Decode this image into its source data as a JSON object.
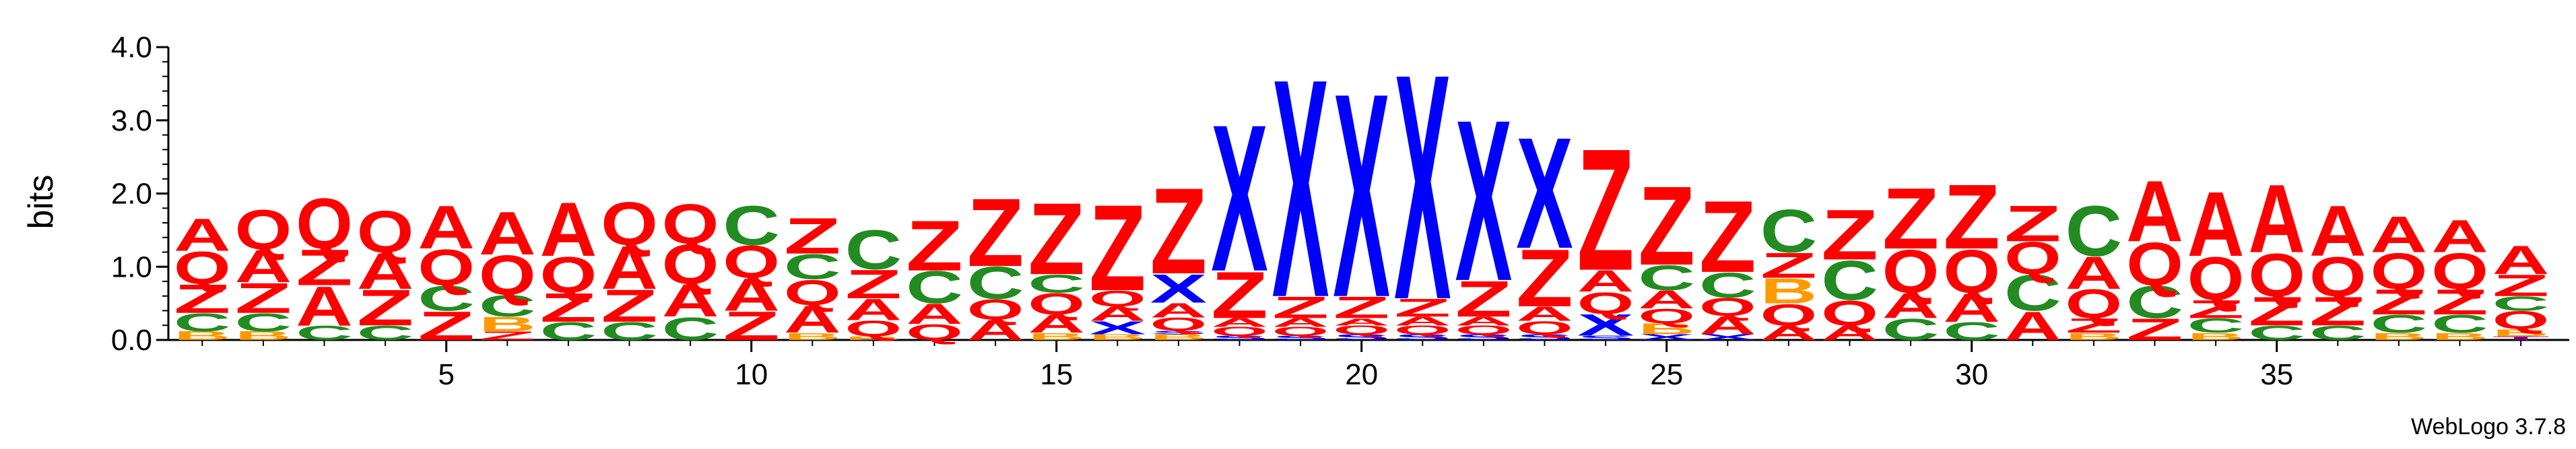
{
  "chart_data": {
    "type": "sequence-logo",
    "ylabel": "bits",
    "ylim": [
      0,
      4
    ],
    "yticks": [
      "0.0",
      "1.0",
      "2.0",
      "3.0",
      "4.0"
    ],
    "xrange": [
      1,
      39
    ],
    "xticks": [
      "5",
      "10",
      "15",
      "20",
      "25",
      "30",
      "35"
    ],
    "footer": "WebLogo 3.7.8",
    "colors": {
      "A": "#ff0000",
      "Q": "#ff0000",
      "Z": "#ff0000",
      "C": "#228b22",
      "B": "#ff9900",
      "X": "#0000ff",
      "S": "#0000ff",
      "T": "#800080"
    },
    "positions": [
      {
        "pos": 1,
        "stack": [
          [
            "B",
            0.12
          ],
          [
            "C",
            0.25
          ],
          [
            "Z",
            0.4
          ],
          [
            "Q",
            0.45
          ],
          [
            "A",
            0.45
          ]
        ]
      },
      {
        "pos": 2,
        "stack": [
          [
            "B",
            0.12
          ],
          [
            "C",
            0.25
          ],
          [
            "Z",
            0.42
          ],
          [
            "A",
            0.45
          ],
          [
            "Q",
            0.55
          ]
        ]
      },
      {
        "pos": 3,
        "stack": [
          [
            "C",
            0.2
          ],
          [
            "A",
            0.55
          ],
          [
            "Z",
            0.5
          ],
          [
            "Q",
            0.7
          ]
        ]
      },
      {
        "pos": 4,
        "stack": [
          [
            "C",
            0.2
          ],
          [
            "Z",
            0.5
          ],
          [
            "A",
            0.5
          ],
          [
            "Q",
            0.58
          ]
        ]
      },
      {
        "pos": 5,
        "stack": [
          [
            "Z",
            0.4
          ],
          [
            "C",
            0.35
          ],
          [
            "Q",
            0.5
          ],
          [
            "A",
            0.6
          ]
        ]
      },
      {
        "pos": 6,
        "stack": [
          [
            "Z",
            0.12
          ],
          [
            "B",
            0.2
          ],
          [
            "C",
            0.3
          ],
          [
            "Q",
            0.55
          ],
          [
            "A",
            0.6
          ]
        ]
      },
      {
        "pos": 7,
        "stack": [
          [
            "C",
            0.25
          ],
          [
            "Z",
            0.4
          ],
          [
            "Q",
            0.5
          ],
          [
            "A",
            0.75
          ]
        ]
      },
      {
        "pos": 8,
        "stack": [
          [
            "C",
            0.25
          ],
          [
            "Z",
            0.45
          ],
          [
            "A",
            0.6
          ],
          [
            "Q",
            0.6
          ]
        ]
      },
      {
        "pos": 9,
        "stack": [
          [
            "C",
            0.32
          ],
          [
            "A",
            0.45
          ],
          [
            "Q",
            0.55
          ],
          [
            "Q",
            0.55
          ]
        ]
      },
      {
        "pos": 10,
        "stack": [
          [
            "Z",
            0.4
          ],
          [
            "A",
            0.45
          ],
          [
            "Q",
            0.45
          ],
          [
            "C",
            0.55
          ]
        ]
      },
      {
        "pos": 11,
        "stack": [
          [
            "B",
            0.1
          ],
          [
            "A",
            0.38
          ],
          [
            "Q",
            0.35
          ],
          [
            "C",
            0.35
          ],
          [
            "Z",
            0.5
          ]
        ]
      },
      {
        "pos": 12,
        "stack": [
          [
            "B",
            0.05
          ],
          [
            "Q",
            0.22
          ],
          [
            "A",
            0.3
          ],
          [
            "Z",
            0.4
          ],
          [
            "C",
            0.55
          ]
        ]
      },
      {
        "pos": 13,
        "stack": [
          [
            "Q",
            0.22
          ],
          [
            "A",
            0.28
          ],
          [
            "C",
            0.45
          ],
          [
            "Z",
            0.7
          ]
        ]
      },
      {
        "pos": 14,
        "stack": [
          [
            "A",
            0.28
          ],
          [
            "Q",
            0.28
          ],
          [
            "C",
            0.45
          ],
          [
            "Z",
            0.95
          ]
        ]
      },
      {
        "pos": 15,
        "stack": [
          [
            "B",
            0.1
          ],
          [
            "A",
            0.25
          ],
          [
            "Q",
            0.3
          ],
          [
            "C",
            0.25
          ],
          [
            "Z",
            1.0
          ]
        ]
      },
      {
        "pos": 16,
        "stack": [
          [
            "B",
            0.08
          ],
          [
            "X",
            0.18
          ],
          [
            "A",
            0.2
          ],
          [
            "Q",
            0.22
          ],
          [
            "Z",
            1.2
          ]
        ]
      },
      {
        "pos": 17,
        "stack": [
          [
            "B",
            0.08
          ],
          [
            "S",
            0.05
          ],
          [
            "Q",
            0.18
          ],
          [
            "A",
            0.2
          ],
          [
            "X",
            0.4
          ],
          [
            "Z",
            1.2
          ]
        ]
      },
      {
        "pos": 18,
        "stack": [
          [
            "S",
            0.06
          ],
          [
            "Q",
            0.12
          ],
          [
            "A",
            0.12
          ],
          [
            "Z",
            0.65
          ],
          [
            "X",
            2.05
          ]
        ]
      },
      {
        "pos": 19,
        "stack": [
          [
            "S",
            0.06
          ],
          [
            "Q",
            0.12
          ],
          [
            "A",
            0.12
          ],
          [
            "Z",
            0.3
          ],
          [
            "X",
            3.05
          ]
        ]
      },
      {
        "pos": 20,
        "stack": [
          [
            "S",
            0.08
          ],
          [
            "Q",
            0.12
          ],
          [
            "A",
            0.1
          ],
          [
            "Z",
            0.3
          ],
          [
            "X",
            2.85
          ]
        ]
      },
      {
        "pos": 21,
        "stack": [
          [
            "S",
            0.08
          ],
          [
            "Q",
            0.12
          ],
          [
            "A",
            0.12
          ],
          [
            "Z",
            0.25
          ],
          [
            "X",
            3.15
          ]
        ]
      },
      {
        "pos": 22,
        "stack": [
          [
            "S",
            0.08
          ],
          [
            "Q",
            0.12
          ],
          [
            "A",
            0.12
          ],
          [
            "Z",
            0.5
          ],
          [
            "X",
            2.25
          ]
        ]
      },
      {
        "pos": 23,
        "stack": [
          [
            "S",
            0.08
          ],
          [
            "Q",
            0.18
          ],
          [
            "A",
            0.2
          ],
          [
            "Z",
            0.8
          ],
          [
            "X",
            1.55
          ]
        ]
      },
      {
        "pos": 24,
        "stack": [
          [
            "S",
            0.06
          ],
          [
            "X",
            0.3
          ],
          [
            "Q",
            0.3
          ],
          [
            "A",
            0.3
          ],
          [
            "Z",
            1.7
          ]
        ]
      },
      {
        "pos": 25,
        "stack": [
          [
            "X",
            0.08
          ],
          [
            "B",
            0.15
          ],
          [
            "Q",
            0.2
          ],
          [
            "A",
            0.25
          ],
          [
            "C",
            0.35
          ],
          [
            "Z",
            1.1
          ]
        ]
      },
      {
        "pos": 26,
        "stack": [
          [
            "X",
            0.08
          ],
          [
            "A",
            0.25
          ],
          [
            "Q",
            0.25
          ],
          [
            "C",
            0.35
          ],
          [
            "Z",
            1.0
          ]
        ]
      },
      {
        "pos": 27,
        "stack": [
          [
            "A",
            0.2
          ],
          [
            "Q",
            0.3
          ],
          [
            "B",
            0.35
          ],
          [
            "Z",
            0.35
          ],
          [
            "C",
            0.6
          ]
        ]
      },
      {
        "pos": 28,
        "stack": [
          [
            "A",
            0.2
          ],
          [
            "Q",
            0.35
          ],
          [
            "C",
            0.55
          ],
          [
            "Z",
            0.7
          ]
        ]
      },
      {
        "pos": 29,
        "stack": [
          [
            "C",
            0.3
          ],
          [
            "A",
            0.35
          ],
          [
            "Q",
            0.6
          ],
          [
            "Z",
            0.85
          ]
        ]
      },
      {
        "pos": 30,
        "stack": [
          [
            "C",
            0.25
          ],
          [
            "A",
            0.4
          ],
          [
            "Q",
            0.6
          ],
          [
            "Z",
            0.9
          ]
        ]
      },
      {
        "pos": 31,
        "stack": [
          [
            "A",
            0.4
          ],
          [
            "C",
            0.5
          ],
          [
            "Q",
            0.45
          ],
          [
            "Z",
            0.5
          ]
        ]
      },
      {
        "pos": 32,
        "stack": [
          [
            "B",
            0.1
          ],
          [
            "Z",
            0.2
          ],
          [
            "Q",
            0.4
          ],
          [
            "A",
            0.45
          ],
          [
            "C",
            0.7
          ]
        ]
      },
      {
        "pos": 33,
        "stack": [
          [
            "Z",
            0.3
          ],
          [
            "C",
            0.45
          ],
          [
            "Q",
            0.6
          ],
          [
            "A",
            0.85
          ]
        ]
      },
      {
        "pos": 34,
        "stack": [
          [
            "B",
            0.1
          ],
          [
            "C",
            0.2
          ],
          [
            "Z",
            0.25
          ],
          [
            "Q",
            0.6
          ],
          [
            "A",
            0.9
          ]
        ]
      },
      {
        "pos": 35,
        "stack": [
          [
            "C",
            0.2
          ],
          [
            "Z",
            0.4
          ],
          [
            "Q",
            0.6
          ],
          [
            "A",
            0.95
          ]
        ]
      },
      {
        "pos": 36,
        "stack": [
          [
            "C",
            0.2
          ],
          [
            "Z",
            0.4
          ],
          [
            "Q",
            0.55
          ],
          [
            "A",
            0.7
          ]
        ]
      },
      {
        "pos": 37,
        "stack": [
          [
            "B",
            0.1
          ],
          [
            "C",
            0.25
          ],
          [
            "Z",
            0.35
          ],
          [
            "Q",
            0.5
          ],
          [
            "A",
            0.5
          ]
        ]
      },
      {
        "pos": 38,
        "stack": [
          [
            "B",
            0.1
          ],
          [
            "C",
            0.25
          ],
          [
            "Z",
            0.35
          ],
          [
            "Q",
            0.5
          ],
          [
            "A",
            0.45
          ]
        ]
      },
      {
        "pos": 39,
        "stack": [
          [
            "T",
            0.05
          ],
          [
            "B",
            0.1
          ],
          [
            "Q",
            0.25
          ],
          [
            "C",
            0.2
          ],
          [
            "Z",
            0.3
          ],
          [
            "A",
            0.4
          ]
        ]
      }
    ]
  }
}
